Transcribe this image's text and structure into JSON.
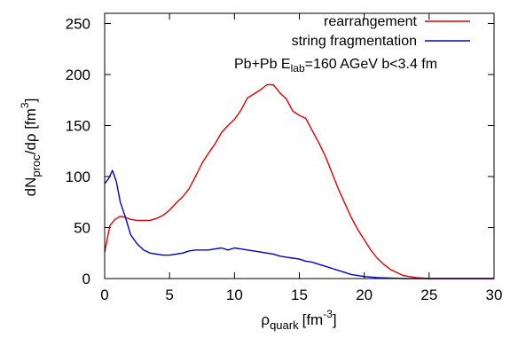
{
  "chart_data": {
    "type": "line",
    "xlabel": {
      "main": "ρ",
      "sub": "quark",
      "unit": "[fm",
      "sup": "-3",
      "close": "]"
    },
    "ylabel": {
      "main": "dN",
      "sub": "proc",
      "mid": "/dρ [fm",
      "sup": "3",
      "close": "]"
    },
    "xlim": [
      0,
      30
    ],
    "ylim": [
      0,
      260
    ],
    "xticks": [
      0,
      5,
      10,
      15,
      20,
      25,
      30
    ],
    "yticks": [
      0,
      50,
      100,
      150,
      200,
      250
    ],
    "grid": false,
    "legend_position": "top-right",
    "annotation": {
      "pre": "Pb+Pb E",
      "sub": "lab",
      "post": "=160 AGeV b<3.4 fm"
    },
    "series": [
      {
        "name": "rearrangement",
        "color": "#e00000",
        "x": [
          0,
          0.4,
          0.8,
          1.2,
          1.6,
          2,
          2.5,
          3,
          3.5,
          4,
          4.5,
          5,
          5.5,
          6,
          6.5,
          7,
          7.5,
          8,
          8.5,
          9,
          9.5,
          10,
          10.5,
          11,
          11.5,
          12,
          12.5,
          13,
          13.5,
          14,
          14.5,
          15,
          15.5,
          16,
          16.5,
          17,
          17.5,
          18,
          18.5,
          19,
          19.5,
          20,
          20.5,
          21,
          21.5,
          22,
          22.5,
          23,
          24,
          25,
          26,
          27,
          28,
          29,
          30
        ],
        "y": [
          26,
          52,
          58,
          61,
          60,
          58,
          57,
          57,
          57,
          59,
          62,
          67,
          74,
          80,
          88,
          100,
          113,
          123,
          132,
          143,
          150,
          156,
          165,
          177,
          181,
          185,
          190,
          190,
          182,
          176,
          164,
          160,
          157,
          145,
          133,
          120,
          104,
          88,
          74,
          60,
          48,
          38,
          28,
          20,
          14,
          9,
          6,
          3,
          1,
          0,
          0,
          0,
          0,
          0,
          0
        ]
      },
      {
        "name": "string fragmentation",
        "color": "#0000cc",
        "x": [
          0,
          0.3,
          0.6,
          0.9,
          1.2,
          1.6,
          2,
          2.5,
          3,
          3.5,
          4,
          4.5,
          5,
          5.5,
          6,
          6.5,
          7,
          7.5,
          8,
          8.5,
          9,
          9.5,
          10,
          10.5,
          11,
          11.5,
          12,
          12.5,
          13,
          13.5,
          14,
          14.5,
          15,
          15.5,
          16,
          16.5,
          17,
          17.5,
          18,
          18.5,
          19,
          19.5,
          20,
          21,
          22,
          23,
          24,
          25,
          26,
          27,
          28,
          29,
          30
        ],
        "y": [
          93,
          98,
          106,
          95,
          75,
          60,
          43,
          34,
          28,
          25,
          24,
          23,
          23,
          24,
          25,
          27,
          28,
          28,
          28,
          29,
          30,
          28,
          30,
          29,
          28,
          27,
          26,
          25,
          24,
          22,
          21,
          20,
          19,
          17,
          16,
          14,
          12,
          10,
          8,
          6,
          4,
          3,
          2,
          1,
          0.5,
          0,
          0,
          0,
          0,
          0,
          0,
          0,
          0
        ]
      }
    ]
  }
}
